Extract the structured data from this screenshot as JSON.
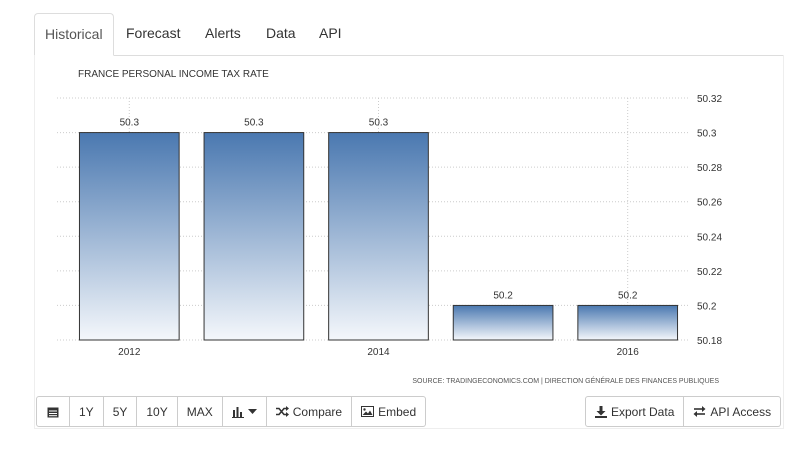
{
  "tabs": [
    "Historical",
    "Forecast",
    "Alerts",
    "Data",
    "API"
  ],
  "chart_data": {
    "type": "bar",
    "title": "FRANCE PERSONAL INCOME TAX RATE",
    "categories": [
      "2012",
      "2013",
      "2014",
      "2015",
      "2016"
    ],
    "x_tick_labels": [
      "2012",
      "",
      "2014",
      "",
      "2016"
    ],
    "values": [
      50.3,
      50.3,
      50.3,
      50.2,
      50.2
    ],
    "data_labels": [
      "50.3",
      "50.3",
      "50.3",
      "50.2",
      "50.2"
    ],
    "ylim": [
      50.18,
      50.32
    ],
    "yticks": [
      50.18,
      50.2,
      50.22,
      50.24,
      50.26,
      50.28,
      50.3,
      50.32
    ],
    "ytick_labels": [
      "50.18",
      "50.2",
      "50.22",
      "50.24",
      "50.26",
      "50.28",
      "50.3",
      "50.32"
    ],
    "y_axis_side": "right",
    "grid": "dotted",
    "source": "SOURCE: TRADINGECONOMICS.COM  |  DIRECTION GÉNÉRALE DES FINANCES PUBLIQUES",
    "colors": {
      "bar_top": "#4a78b0",
      "bar_bottom": "#f4f7fb",
      "bar_border": "#333333",
      "grid": "#cccccc"
    }
  },
  "toolbar": {
    "range_buttons": [
      "1Y",
      "5Y",
      "10Y",
      "MAX"
    ],
    "compare_label": "Compare",
    "embed_label": "Embed",
    "export_label": "Export Data",
    "api_access_label": "API Access"
  }
}
